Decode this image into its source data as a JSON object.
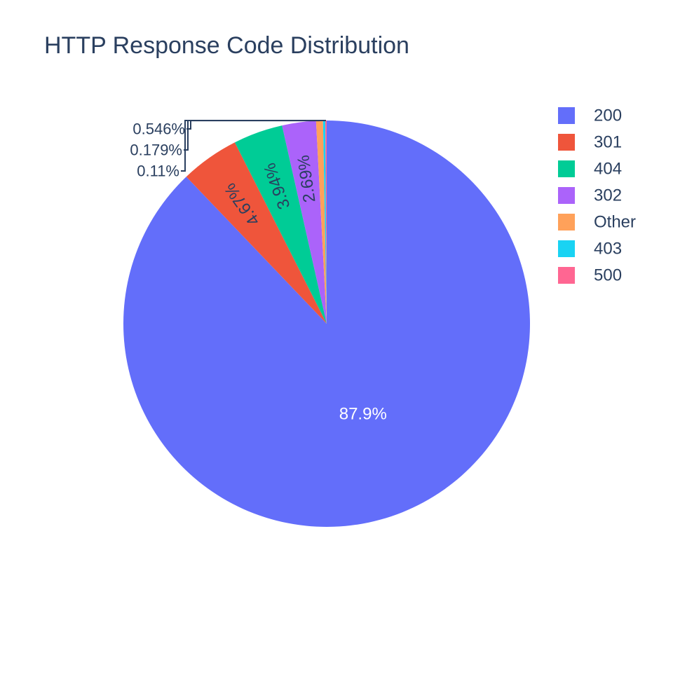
{
  "chart_data": {
    "type": "pie",
    "title": "HTTP Response Code Distribution",
    "legend_position": "top-right",
    "slices": [
      {
        "label": "200",
        "percent": 87.9,
        "text": "87.9%",
        "color": "#636efa"
      },
      {
        "label": "301",
        "percent": 4.67,
        "text": "4.67%",
        "color": "#ef553b"
      },
      {
        "label": "404",
        "percent": 3.94,
        "text": "3.94%",
        "color": "#00cc96"
      },
      {
        "label": "302",
        "percent": 2.69,
        "text": "2.69%",
        "color": "#ab63fa"
      },
      {
        "label": "Other",
        "percent": 0.546,
        "text": "0.546%",
        "color": "#ffa15a"
      },
      {
        "label": "403",
        "percent": 0.179,
        "text": "0.179%",
        "color": "#19d3f3"
      },
      {
        "label": "500",
        "percent": 0.11,
        "text": "0.11%",
        "color": "#ff6692"
      }
    ]
  }
}
